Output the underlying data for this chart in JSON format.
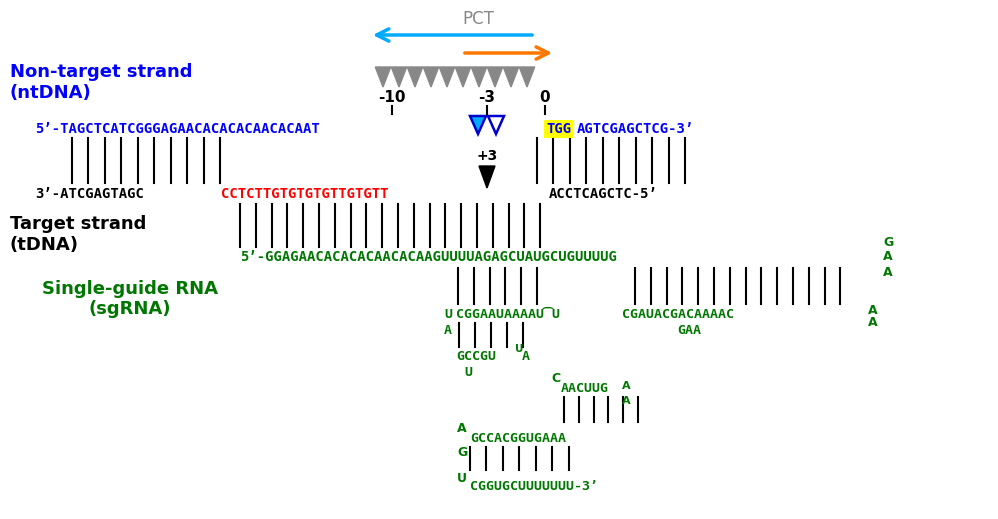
{
  "bg_color": "#ffffff",
  "pct_color": "#888888",
  "blue_arrow_color": "#00aaff",
  "orange_arrow_color": "#ff7700",
  "gray_tri_color": "#888888",
  "blue": "#0000ff",
  "red": "#ff0000",
  "green": "#007700",
  "yellow_bg": "#ffff00",
  "black": "#000000",
  "nt_label1": "Non-target strand",
  "nt_label2": "(ntDNA)",
  "t_label1": "Target strand",
  "t_label2": "(tDNA)",
  "sg_label1": "Single-guide RNA",
  "sg_label2": "(sgRNA)",
  "nt_seq_left": "5’-TAGCTCATCGGGAGAACACACACAACACAAT",
  "nt_seq_tgg": "TGG",
  "nt_seq_right": "AGTCGAGCTCG-3’",
  "bot_black1": "3’-ATCGAGTAGC",
  "bot_red": "CCTCTTGTGTGTGTTGTGTT",
  "bot_black2": "ACCTCAGCTC-5’",
  "tdna": "5’-GGAGAACACACACAACACAAGUUUUAGAGCUAUGCUGUUUUG"
}
